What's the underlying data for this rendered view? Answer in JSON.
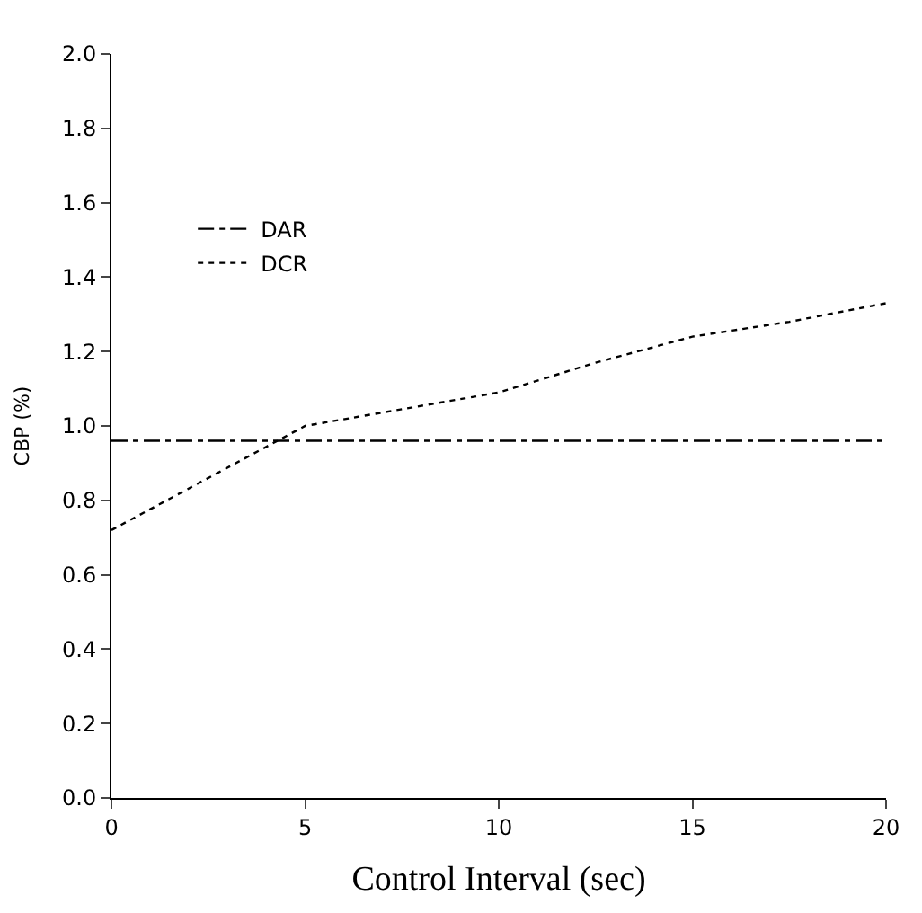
{
  "chart_data": {
    "type": "line",
    "xlabel": "Control Interval (sec)",
    "ylabel": "CBP (%)",
    "xlim": [
      0,
      20
    ],
    "xticks": [
      0,
      5,
      10,
      15,
      20
    ],
    "ylim": [
      0,
      2
    ],
    "yticks": [
      {
        "value": 0,
        "label": "0.0"
      },
      {
        "value": 0.2,
        "label": "0.2"
      },
      {
        "value": 0.4,
        "label": "0.4"
      },
      {
        "value": 0.6,
        "label": "0.6"
      },
      {
        "value": 0.8,
        "label": "0.8"
      },
      {
        "value": 1,
        "label": "1.0"
      },
      {
        "value": 1.2,
        "label": "1.2"
      },
      {
        "value": 1.4,
        "label": "1.4"
      },
      {
        "value": 1.6,
        "label": "1.6"
      },
      {
        "value": 1.8,
        "label": "1.8"
      },
      {
        "value": 2,
        "label": "2.0"
      }
    ],
    "series": [
      {
        "name": "DAR",
        "color": "#000000",
        "line_style": "dashdot",
        "x": [
          0,
          20
        ],
        "values": [
          0.96,
          0.96
        ]
      },
      {
        "name": "DCR",
        "color": "#000000",
        "line_style": "dotted",
        "x": [
          0,
          5,
          10,
          12.5,
          15,
          17.5,
          20
        ],
        "values": [
          0.72,
          1.0,
          1.09,
          1.17,
          1.24,
          1.28,
          1.33
        ]
      }
    ],
    "grid": false,
    "legend": "top left",
    "marker": "none"
  }
}
